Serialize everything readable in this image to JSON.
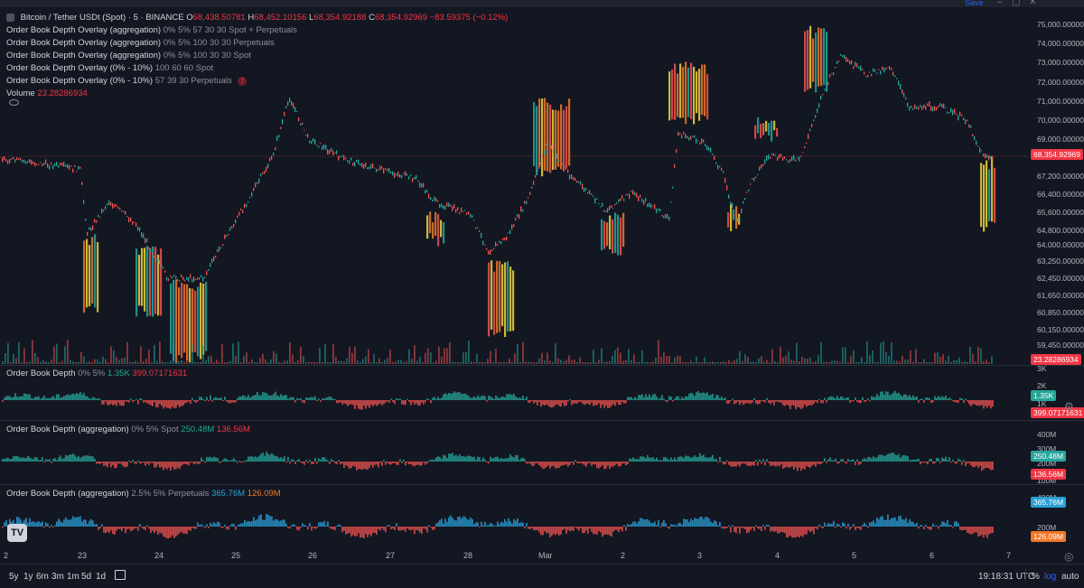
{
  "window": {
    "save_label": "Save"
  },
  "main_legend": {
    "symbol": "Bitcoin / Tether USDt (Spot) · 5 · BINANCE",
    "o_label": "O",
    "o": "68,438.50781",
    "h_label": "H",
    "h": "68,452.10156",
    "l_label": "L",
    "l": "68,354.92188",
    "c_label": "C",
    "c": "68,354.92969",
    "change": "−83.59375 (−0.12%)"
  },
  "indicators": [
    {
      "name": "Order Book Depth Overlay (aggregation)",
      "params": "0% 5% 57 30 30 Spot + Perpetuals"
    },
    {
      "name": "Order Book Depth Overlay (aggregation)",
      "params": "0% 5% 100 30 30 Perpetuals"
    },
    {
      "name": "Order Book Depth Overlay (aggregation)",
      "params": "0% 5% 100 30 30 Spot"
    },
    {
      "name": "Order Book Depth Overlay (0% - 10%)",
      "params": "100 60 60 Spot"
    },
    {
      "name": "Order Book Depth Overlay (0% - 10%)",
      "params": "57 39 30 Perpetuals"
    }
  ],
  "volume": {
    "label": "Volume",
    "value": "23.28286934"
  },
  "price_axis": [
    "75,000.00000",
    "74,000.00000",
    "73,000.00000",
    "72,000.00000",
    "71,000.00000",
    "70,000.00000",
    "69,000.00000",
    "67,200.00000",
    "66,400.00000",
    "65,600.00000",
    "64,800.00000",
    "64,000.00000",
    "63,250.00000",
    "62,450.00000",
    "61,650.00000",
    "60,850.00000",
    "60,150.00000",
    "59,450.00000"
  ],
  "price_tag": "68,354.92969",
  "volume_tag": "23.28286934",
  "pane1": {
    "title": "Order Book Depth",
    "params": "0% 5%",
    "v1": "1.35K",
    "v2": "399.07171631",
    "axis": [
      "3K",
      "2K",
      "1K"
    ],
    "tag1": "1.35K",
    "tag2": "399.07171631"
  },
  "pane2": {
    "title": "Order Book Depth (aggregation)",
    "params": "0% 5% Spot",
    "v1": "250.48M",
    "v2": "136.56M",
    "axis": [
      "400M",
      "300M",
      "200M",
      "100M"
    ],
    "tag1": "250.48M",
    "tag2": "136.56M"
  },
  "pane3": {
    "title": "Order Book Depth (aggregation)",
    "params": "2.5% 5% Perpetuals",
    "v1": "365.76M",
    "v2": "126.09M",
    "axis": [
      "400M",
      "200M"
    ],
    "tag1": "365.76M",
    "tag2": "126.09M"
  },
  "time_axis": [
    "2",
    "23",
    "24",
    "25",
    "26",
    "27",
    "28",
    "Mar",
    "2",
    "3",
    "4",
    "5",
    "6",
    "7"
  ],
  "ranges": [
    "5y",
    "1y",
    "6m",
    "3m",
    "1m",
    "5d",
    "1d"
  ],
  "clock": "19:18:31 UTC",
  "scale_options": [
    "%",
    "log",
    "auto"
  ],
  "logo_text": "TV",
  "colors": {
    "background": "#131722",
    "bid": "#26a69a",
    "ask": "#ef5350",
    "heat_yellow": "#f0d43a",
    "heat_orange": "#f0782a",
    "price_tag": "#f23645",
    "accent": "#2962ff"
  }
}
